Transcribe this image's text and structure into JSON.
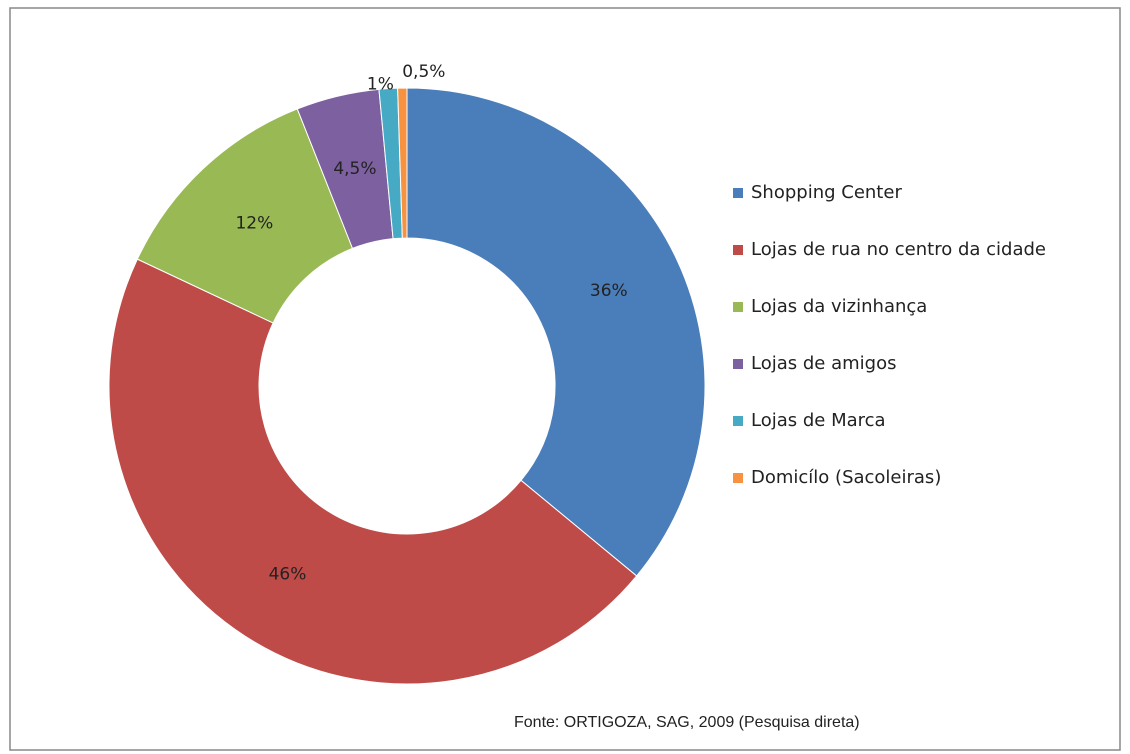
{
  "chart_data": {
    "type": "donut",
    "categories": [
      "Shopping Center",
      "Lojas de rua no centro da cidade",
      "Lojas da vizinhança",
      "Lojas de amigos",
      "Lojas de Marca",
      "Domicílo  (Sacoleiras)"
    ],
    "values": [
      36,
      46,
      12,
      4.5,
      1,
      0.5
    ],
    "value_labels": [
      "36%",
      "46%",
      "12%",
      "4,5%",
      "1%",
      "0,5%"
    ],
    "colors": [
      "#4a7ebb",
      "#be4b48",
      "#98b954",
      "#7d60a0",
      "#46aac5",
      "#f69240"
    ],
    "legend": "right",
    "source": "Fonte: ORTIGOZA, SAG, 2009 (Pesquisa direta)"
  }
}
